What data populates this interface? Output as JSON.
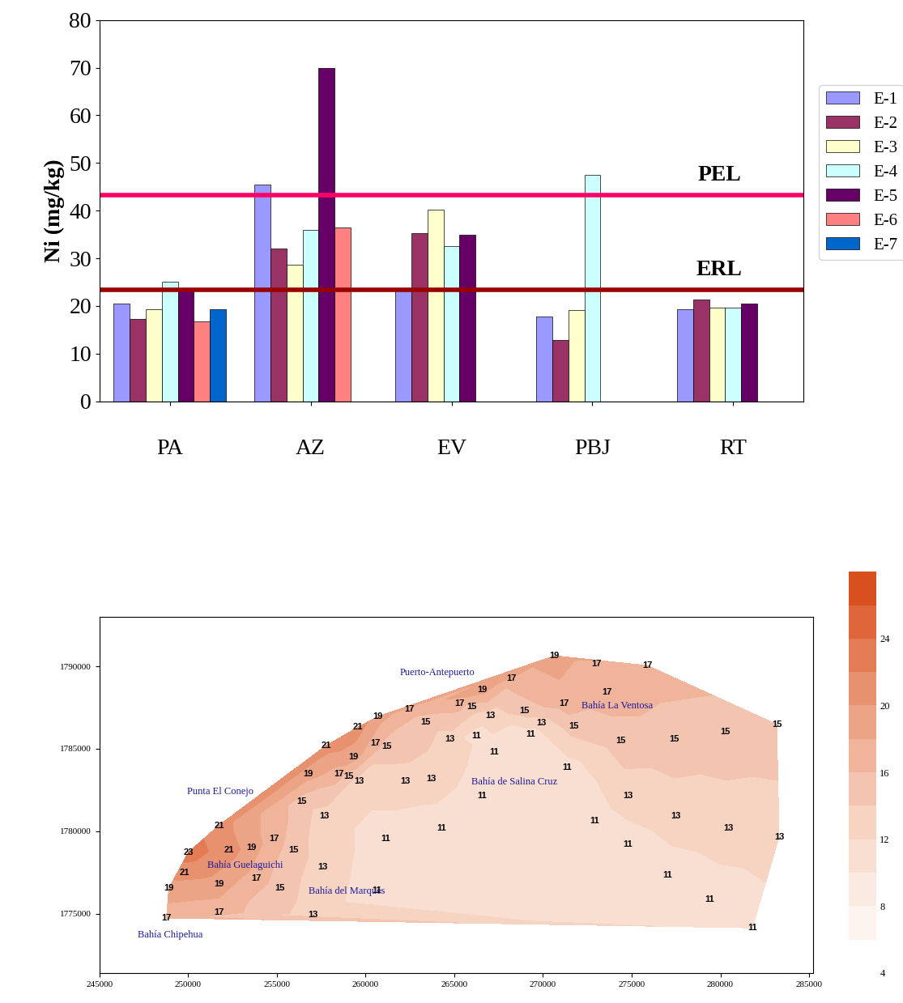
{
  "chart_data": [
    {
      "type": "bar",
      "y_label": "Ni (mg/kg)",
      "categories": [
        "PA",
        "AZ",
        "EV",
        "PBJ",
        "RT"
      ],
      "series": [
        {
          "name": "E-1",
          "color": "#9999ff",
          "values": [
            20.5,
            45.5,
            23.5,
            17.8,
            19.3
          ]
        },
        {
          "name": "E-2",
          "color": "#993366",
          "values": [
            17.2,
            32,
            35.3,
            12.8,
            21.3
          ]
        },
        {
          "name": "E-3",
          "color": "#ffffcc",
          "values": [
            19.3,
            28.7,
            40.2,
            19.2,
            19.6
          ]
        },
        {
          "name": "E-4",
          "color": "#ccffff",
          "values": [
            25,
            36,
            32.5,
            47.5,
            19.6
          ]
        },
        {
          "name": "E-5",
          "color": "#660066",
          "values": [
            23.5,
            70,
            35,
            null,
            20.5
          ]
        },
        {
          "name": "E-6",
          "color": "#ff8080",
          "values": [
            16.8,
            36.5,
            null,
            null,
            null
          ]
        },
        {
          "name": "E-7",
          "color": "#0066cc",
          "values": [
            19.3,
            null,
            null,
            null,
            null
          ]
        }
      ],
      "reference_lines": [
        {
          "label": "PEL",
          "value": 43.3,
          "color": "#ff0066"
        },
        {
          "label": "ERL",
          "value": 23.4,
          "color": "#990000"
        }
      ],
      "ylim": [
        0,
        80
      ],
      "yticks": [
        0,
        10,
        20,
        30,
        40,
        50,
        60,
        70,
        80
      ],
      "legend": "center left"
    },
    {
      "type": "contour",
      "xlim": [
        245000,
        285200
      ],
      "ylim": [
        1771400,
        1793000
      ],
      "xticks": [
        245000,
        250000,
        255000,
        260000,
        265000,
        270000,
        275000,
        280000,
        285000
      ],
      "yticks": [
        1775000,
        1780000,
        1785000,
        1790000
      ],
      "colorbar": {
        "range": [
          4,
          28
        ],
        "ticks": [
          4,
          8,
          12,
          16,
          20,
          24
        ]
      },
      "contour_labels": [
        {
          "x": 270645,
          "y": 1790640,
          "value": 19
        },
        {
          "x": 273000,
          "y": 1790137,
          "value": 17
        },
        {
          "x": 275880,
          "y": 1790046,
          "value": 17
        },
        {
          "x": 273600,
          "y": 1788445,
          "value": 17
        },
        {
          "x": 271190,
          "y": 1787760,
          "value": 17
        },
        {
          "x": 268230,
          "y": 1789270,
          "value": 17
        },
        {
          "x": 266590,
          "y": 1788580,
          "value": 19
        },
        {
          "x": 265310,
          "y": 1787760,
          "value": 17
        },
        {
          "x": 265990,
          "y": 1787530,
          "value": 15
        },
        {
          "x": 267050,
          "y": 1787030,
          "value": 13
        },
        {
          "x": 268960,
          "y": 1787300,
          "value": 15
        },
        {
          "x": 269910,
          "y": 1786570,
          "value": 13
        },
        {
          "x": 271740,
          "y": 1786390,
          "value": 15
        },
        {
          "x": 274380,
          "y": 1785470,
          "value": 15
        },
        {
          "x": 277390,
          "y": 1785560,
          "value": 15
        },
        {
          "x": 280260,
          "y": 1786020,
          "value": 15
        },
        {
          "x": 283170,
          "y": 1786480,
          "value": 15
        },
        {
          "x": 262450,
          "y": 1787390,
          "value": 17
        },
        {
          "x": 263360,
          "y": 1786610,
          "value": 15
        },
        {
          "x": 264770,
          "y": 1785560,
          "value": 13
        },
        {
          "x": 266230,
          "y": 1785790,
          "value": 11
        },
        {
          "x": 267230,
          "y": 1784790,
          "value": 11
        },
        {
          "x": 269320,
          "y": 1785880,
          "value": 11
        },
        {
          "x": 271330,
          "y": 1783870,
          "value": 11
        },
        {
          "x": 274790,
          "y": 1782130,
          "value": 13
        },
        {
          "x": 277480,
          "y": 1780900,
          "value": 13
        },
        {
          "x": 280440,
          "y": 1780170,
          "value": 13
        },
        {
          "x": 283310,
          "y": 1779660,
          "value": 13
        },
        {
          "x": 272920,
          "y": 1780630,
          "value": 11
        },
        {
          "x": 274790,
          "y": 1779210,
          "value": 11
        },
        {
          "x": 277020,
          "y": 1777330,
          "value": 11
        },
        {
          "x": 279390,
          "y": 1775870,
          "value": 11
        },
        {
          "x": 281800,
          "y": 1774130,
          "value": 11
        },
        {
          "x": 260670,
          "y": 1786940,
          "value": 19
        },
        {
          "x": 259570,
          "y": 1786300,
          "value": 21
        },
        {
          "x": 260530,
          "y": 1785340,
          "value": 17
        },
        {
          "x": 261210,
          "y": 1785150,
          "value": 15
        },
        {
          "x": 257800,
          "y": 1785200,
          "value": 21
        },
        {
          "x": 259300,
          "y": 1784510,
          "value": 19
        },
        {
          "x": 258480,
          "y": 1783460,
          "value": 17
        },
        {
          "x": 259030,
          "y": 1783320,
          "value": 15
        },
        {
          "x": 259620,
          "y": 1783050,
          "value": 13
        },
        {
          "x": 256750,
          "y": 1783460,
          "value": 19
        },
        {
          "x": 262220,
          "y": 1783050,
          "value": 13
        },
        {
          "x": 263680,
          "y": 1783190,
          "value": 13
        },
        {
          "x": 266550,
          "y": 1782130,
          "value": 11
        },
        {
          "x": 264270,
          "y": 1780170,
          "value": 11
        },
        {
          "x": 261120,
          "y": 1779530,
          "value": 11
        },
        {
          "x": 256390,
          "y": 1781810,
          "value": 15
        },
        {
          "x": 257660,
          "y": 1780900,
          "value": 13
        },
        {
          "x": 251740,
          "y": 1780350,
          "value": 21
        },
        {
          "x": 253560,
          "y": 1778980,
          "value": 19
        },
        {
          "x": 254840,
          "y": 1779530,
          "value": 17
        },
        {
          "x": 255930,
          "y": 1778840,
          "value": 15
        },
        {
          "x": 250010,
          "y": 1778700,
          "value": 23
        },
        {
          "x": 252290,
          "y": 1778840,
          "value": 21
        },
        {
          "x": 249780,
          "y": 1777470,
          "value": 21
        },
        {
          "x": 251740,
          "y": 1776790,
          "value": 19
        },
        {
          "x": 253840,
          "y": 1777150,
          "value": 17
        },
        {
          "x": 257570,
          "y": 1777840,
          "value": 13
        },
        {
          "x": 248920,
          "y": 1776530,
          "value": 19
        },
        {
          "x": 251740,
          "y": 1775090,
          "value": 17
        },
        {
          "x": 255160,
          "y": 1776530,
          "value": 15
        },
        {
          "x": 248780,
          "y": 1774730,
          "value": 17
        },
        {
          "x": 257030,
          "y": 1774950,
          "value": 13
        },
        {
          "x": 260620,
          "y": 1776420,
          "value": 11
        }
      ],
      "place_names": [
        {
          "x": 264040,
          "y": 1789590,
          "label": "Puerto-Antepuerto"
        },
        {
          "x": 274200,
          "y": 1787620,
          "label": "Bahía La Ventosa"
        },
        {
          "x": 268370,
          "y": 1782960,
          "label": "Bahía de Salina Cruz"
        },
        {
          "x": 251830,
          "y": 1782410,
          "label": "Punta El Conejo"
        },
        {
          "x": 253240,
          "y": 1777930,
          "label": "Bahía Guelaguichi"
        },
        {
          "x": 258940,
          "y": 1776330,
          "label": "Bahía del Marqués"
        },
        {
          "x": 249010,
          "y": 1773720,
          "label": "Bahía Chipehua"
        }
      ]
    }
  ]
}
